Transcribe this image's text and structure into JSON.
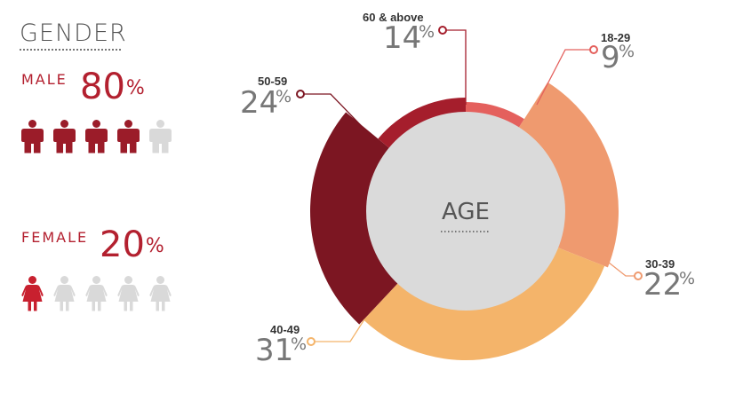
{
  "gender": {
    "title": "GENDER",
    "male": {
      "label": "MALE",
      "value": "80",
      "pct": "%",
      "icons_total": 5,
      "icons_filled": 4,
      "color": "#9b1c29",
      "empty_color": "#d9d9d9"
    },
    "female": {
      "label": "FEMALE",
      "value": "20",
      "pct": "%",
      "icons_total": 5,
      "icons_filled": 1,
      "color": "#c8202f",
      "empty_color": "#d9d9d9"
    }
  },
  "chart_data": {
    "type": "pie",
    "variant": "donut",
    "center_label": "AGE",
    "categories": [
      "18-29",
      "30-39",
      "40-49",
      "50-59",
      "60 & above"
    ],
    "values": [
      9,
      22,
      31,
      24,
      14
    ],
    "colors": [
      "#e4605d",
      "#ef9a6f",
      "#f4b46a",
      "#7c1622",
      "#a51e2c"
    ],
    "center_color": "#dadada",
    "unit": "%"
  }
}
